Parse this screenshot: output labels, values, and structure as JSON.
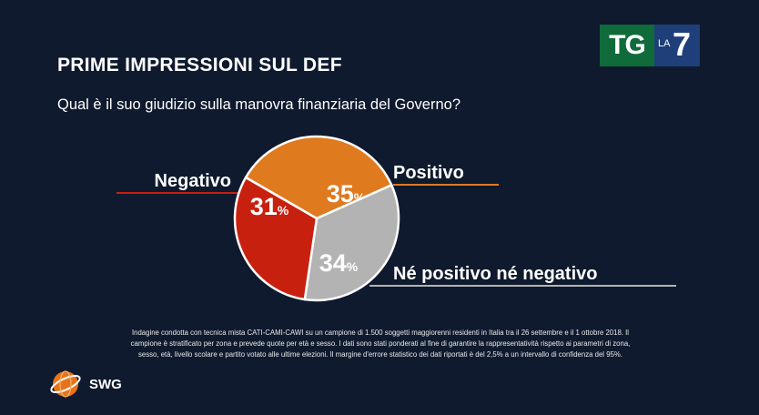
{
  "header": {
    "title": "PRIME IMPRESSIONI SUL DEF",
    "subtitle": "Qual è il suo giudizio sulla manovra finanziaria del Governo?"
  },
  "logo": {
    "tg": "TG",
    "la": "LA",
    "seven": "7"
  },
  "chart_data": {
    "type": "pie",
    "title": "PRIME IMPRESSIONI SUL DEF",
    "subtitle": "Qual è il suo giudizio sulla manovra finanziaria del Governo?",
    "slices": [
      {
        "label": "Positivo",
        "value": 35,
        "display": "35",
        "unit": "%",
        "color": "#e07a1f"
      },
      {
        "label": "Né positivo né negativo",
        "value": 34,
        "display": "34",
        "unit": "%",
        "color": "#b3b3b3"
      },
      {
        "label": "Negativo",
        "value": 31,
        "display": "31",
        "unit": "%",
        "color": "#c8200f"
      }
    ]
  },
  "footnote": {
    "line1": "Indagine condotta con tecnica mista CATI-CAMI-CAWI su un campione di 1.500 soggetti maggiorenni residenti in Italia tra il 26 settembre e il 1 ottobre 2018. Il",
    "line2": "campione è stratificato per zona e prevede quote per età e sesso. I dati sono stati ponderati al fine di garantire la rappresentatività rispetto ai parametri di zona,",
    "line3": "sesso, età, livello scolare e partito votato alle ultime elezioni. Il margine d'errore statistico dei dati riportati è del 2,5% a un intervallo di confidenza del 95%."
  },
  "brand": {
    "name": "SWG"
  }
}
